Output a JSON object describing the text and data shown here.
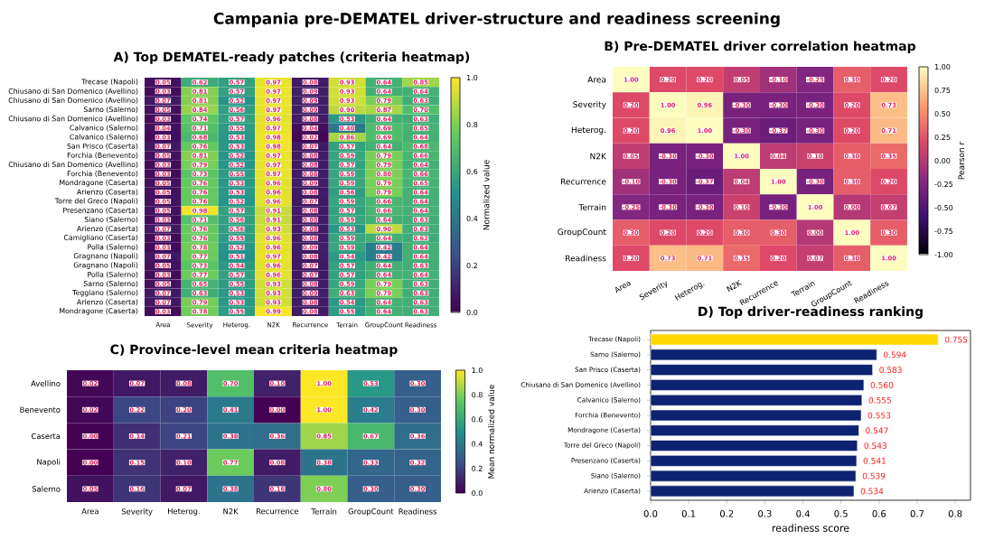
{
  "chart_data": [
    {
      "type": "heatmap",
      "title": "A) Top DEMATEL-ready patches (criteria heatmap)",
      "annotations": [
        "Campania pre-DEMATEL driver-structure and readiness screening"
      ],
      "categories": [
        "Area",
        "Severity",
        "Heterog.",
        "N2K",
        "Recurrence",
        "Terrain",
        "GroupCount",
        "Readiness"
      ],
      "y_categories": [
        "Trecase (Napoli)",
        "Chiusano di San Domenico (Avellino)",
        "Chiusano di San Domenico (Avellino)",
        "Sarno (Salerno)",
        "Chiusano di San Domenico (Avellino)",
        "Calvanico (Salerno)",
        "Calvanico (Salerno)",
        "San Prisco (Caserta)",
        "Forchia (Benevento)",
        "Chiusano di San Domenico (Avellino)",
        "Forchia (Benevento)",
        "Mondragone (Caserta)",
        "Arienzo (Caserta)",
        "Torre del Greco (Napoli)",
        "Presenzano (Caserta)",
        "Siano (Salerno)",
        "Arienzo (Caserta)",
        "Camigliano (Caserta)",
        "Polla (Salerno)",
        "Gragnano (Napoli)",
        "Gragnano (Napoli)",
        "Polla (Salerno)",
        "Sarno (Salerno)",
        "Teggiano (Salerno)",
        "Arienzo (Caserta)",
        "Mondragone (Caserta)"
      ],
      "cells": [
        [
          0.05,
          0.62,
          0.57,
          0.97,
          0.08,
          0.93,
          0.64,
          0.85
        ],
        [
          0.03,
          0.81,
          0.57,
          0.97,
          0.09,
          0.93,
          0.64,
          0.64
        ],
        [
          0.07,
          0.81,
          0.52,
          0.97,
          0.09,
          0.93,
          0.79,
          0.63
        ],
        [
          0.05,
          0.84,
          0.56,
          0.97,
          0.09,
          0.9,
          0.87,
          0.7
        ],
        [
          0.03,
          0.74,
          0.57,
          0.96,
          0.08,
          0.53,
          0.64,
          0.63
        ],
        [
          0.04,
          0.71,
          0.55,
          0.97,
          0.04,
          0.4,
          0.69,
          0.65
        ],
        [
          0.03,
          0.68,
          0.53,
          0.98,
          0.02,
          0.86,
          0.69,
          0.64
        ],
        [
          0.07,
          0.76,
          0.53,
          0.98,
          0.07,
          0.57,
          0.64,
          0.68
        ],
        [
          0.05,
          0.81,
          0.52,
          0.97,
          0.08,
          0.59,
          0.79,
          0.66
        ],
        [
          0.03,
          0.79,
          0.52,
          0.97,
          0.08,
          0.57,
          0.79,
          0.64
        ],
        [
          0.03,
          0.73,
          0.55,
          0.97,
          0.08,
          0.59,
          0.8,
          0.66
        ],
        [
          0.05,
          0.76,
          0.53,
          0.96,
          0.09,
          0.59,
          0.79,
          0.65
        ],
        [
          0.05,
          0.76,
          0.53,
          0.96,
          0.08,
          0.56,
          0.79,
          0.64
        ],
        [
          0.05,
          0.76,
          0.52,
          0.96,
          0.07,
          0.59,
          0.66,
          0.64
        ],
        [
          0.05,
          0.98,
          0.57,
          0.91,
          0.08,
          0.57,
          0.66,
          0.64
        ],
        [
          0.03,
          0.71,
          0.56,
          0.91,
          0.08,
          0.59,
          0.64,
          0.63
        ],
        [
          0.07,
          0.76,
          0.56,
          0.93,
          0.08,
          0.53,
          0.9,
          0.63
        ],
        [
          0.03,
          0.76,
          0.55,
          0.96,
          0.08,
          0.59,
          0.64,
          0.62
        ],
        [
          0.03,
          0.78,
          0.52,
          0.96,
          0.09,
          0.59,
          0.42,
          0.64
        ],
        [
          0.07,
          0.77,
          0.51,
          0.97,
          0.08,
          0.54,
          0.42,
          0.64
        ],
        [
          0.05,
          0.73,
          0.54,
          0.96,
          0.07,
          0.57,
          0.64,
          0.63
        ],
        [
          0.03,
          0.77,
          0.57,
          0.96,
          0.07,
          0.57,
          0.64,
          0.64
        ],
        [
          0.05,
          0.65,
          0.55,
          0.93,
          0.08,
          0.59,
          0.79,
          0.63
        ],
        [
          0.07,
          0.63,
          0.53,
          0.93,
          0.09,
          0.63,
          0.79,
          0.63
        ],
        [
          0.07,
          0.79,
          0.53,
          0.93,
          0.08,
          0.54,
          0.64,
          0.63
        ],
        [
          0.03,
          0.78,
          0.55,
          0.99,
          0.08,
          0.55,
          0.64,
          0.63
        ]
      ],
      "clim": [
        0,
        1
      ],
      "cticks": [
        {
          "value": 0,
          "label": "0.0"
        },
        {
          "value": 0.2,
          "label": "0.2"
        },
        {
          "value": 0.4,
          "label": "0.4"
        },
        {
          "value": 0.6,
          "label": "0.6"
        },
        {
          "value": 0.8,
          "label": "0.8"
        },
        {
          "value": 1,
          "label": "1.0"
        }
      ],
      "cell_labels": [
        [
          "0.05",
          "0.62",
          "0.57",
          "0.97",
          "0.08",
          "0.93",
          "0.64",
          "0.85"
        ],
        [
          "0.03",
          "0.81",
          "0.57",
          "0.97",
          "0.09",
          "0.93",
          "0.64",
          "0.64"
        ],
        [
          "0.07",
          "0.81",
          "0.52",
          "0.97",
          "0.09",
          "0.93",
          "0.79",
          "0.63"
        ],
        [
          "0.05",
          "0.84",
          "0.56",
          "0.97",
          "0.09",
          "0.90",
          "0.87",
          "0.70"
        ],
        [
          "0.03",
          "0.74",
          "0.57",
          "0.96",
          "0.08",
          "0.53",
          "0.64",
          "0.63"
        ],
        [
          "0.04",
          "0.71",
          "0.55",
          "0.97",
          "0.04",
          "0.40",
          "0.69",
          "0.65"
        ],
        [
          "0.03",
          "0.68",
          "0.53",
          "0.98",
          "0.02",
          "0.86",
          "0.69",
          "0.64"
        ],
        [
          "0.07",
          "0.76",
          "0.53",
          "0.98",
          "0.07",
          "0.57",
          "0.64",
          "0.68"
        ],
        [
          "0.05",
          "0.81",
          "0.52",
          "0.97",
          "0.08",
          "0.59",
          "0.79",
          "0.66"
        ],
        [
          "0.03",
          "0.79",
          "0.52",
          "0.97",
          "0.08",
          "0.57",
          "0.79",
          "0.64"
        ],
        [
          "0.03",
          "0.73",
          "0.55",
          "0.97",
          "0.08",
          "0.59",
          "0.80",
          "0.66"
        ],
        [
          "0.05",
          "0.76",
          "0.53",
          "0.96",
          "0.09",
          "0.59",
          "0.79",
          "0.65"
        ],
        [
          "0.05",
          "0.76",
          "0.53",
          "0.96",
          "0.08",
          "0.56",
          "0.79",
          "0.64"
        ],
        [
          "0.05",
          "0.76",
          "0.52",
          "0.96",
          "0.07",
          "0.59",
          "0.66",
          "0.64"
        ],
        [
          "0.05",
          "0.98",
          "0.57",
          "0.91",
          "0.08",
          "0.57",
          "0.66",
          "0.64"
        ],
        [
          "0.03",
          "0.71",
          "0.56",
          "0.91",
          "0.08",
          "0.59",
          "0.64",
          "0.63"
        ],
        [
          "0.07",
          "0.76",
          "0.56",
          "0.93",
          "0.08",
          "0.53",
          "0.90",
          "0.63"
        ],
        [
          "0.03",
          "0.76",
          "0.55",
          "0.96",
          "0.08",
          "0.59",
          "0.64",
          "0.62"
        ],
        [
          "0.03",
          "0.78",
          "0.52",
          "0.96",
          "0.09",
          "0.59",
          "0.42",
          "0.64"
        ],
        [
          "0.07",
          "0.77",
          "0.51",
          "0.97",
          "0.08",
          "0.54",
          "0.42",
          "0.64"
        ],
        [
          "0.05",
          "0.73",
          "0.54",
          "0.96",
          "0.07",
          "0.57",
          "0.64",
          "0.63"
        ],
        [
          "0.03",
          "0.77",
          "0.57",
          "0.96",
          "0.07",
          "0.57",
          "0.64",
          "0.64"
        ],
        [
          "0.05",
          "0.65",
          "0.55",
          "0.93",
          "0.08",
          "0.59",
          "0.79",
          "0.63"
        ],
        [
          "0.07",
          "0.63",
          "0.53",
          "0.93",
          "0.09",
          "0.63",
          "0.79",
          "0.63"
        ],
        [
          "0.07",
          "0.79",
          "0.53",
          "0.93",
          "0.08",
          "0.54",
          "0.64",
          "0.63"
        ],
        [
          "0.03",
          "0.78",
          "0.55",
          "0.99",
          "0.08",
          "0.55",
          "0.64",
          "0.63"
        ]
      ],
      "clabel": "Normalized value",
      "data_labels": true
    },
    {
      "type": "heatmap",
      "title": "B) Pre-DEMATEL driver correlation heatmap",
      "categories": [
        "Area",
        "Severity",
        "Heterog.",
        "N2K",
        "Recurrence",
        "Terrain",
        "GroupCount",
        "Readiness"
      ],
      "y_categories": [
        "Area",
        "Severity",
        "Heterog.",
        "N2K",
        "Recurrence",
        "Terrain",
        "GroupCount",
        "Readiness"
      ],
      "cells": [
        [
          1.0,
          0.2,
          0.2,
          0.05,
          -0.1,
          -0.25,
          0.3,
          0.2
        ],
        [
          0.2,
          1.0,
          0.96,
          -0.3,
          -0.3,
          -0.3,
          0.2,
          0.73
        ],
        [
          0.2,
          0.96,
          1.0,
          -0.3,
          -0.37,
          -0.3,
          0.2,
          0.71
        ],
        [
          0.05,
          -0.3,
          -0.3,
          1.0,
          0.04,
          0.1,
          0.3,
          0.35
        ],
        [
          -0.1,
          -0.3,
          -0.37,
          0.04,
          1.0,
          -0.3,
          0.3,
          0.2
        ],
        [
          -0.25,
          -0.3,
          -0.3,
          0.1,
          -0.3,
          1.0,
          0.0,
          0.07
        ],
        [
          0.3,
          0.2,
          0.2,
          0.3,
          0.3,
          0.0,
          1.0,
          0.3
        ],
        [
          0.2,
          0.73,
          0.71,
          0.35,
          0.2,
          0.07,
          0.3,
          1.0
        ]
      ],
      "clim": [
        -1,
        1
      ],
      "cticks": [
        {
          "value": -1,
          "label": "-1.00"
        },
        {
          "value": -0.75,
          "label": "-0.75"
        },
        {
          "value": -0.5,
          "label": "-0.50"
        },
        {
          "value": -0.25,
          "label": "-0.25"
        },
        {
          "value": 0,
          "label": "0.00"
        },
        {
          "value": 0.25,
          "label": "0.25"
        },
        {
          "value": 0.5,
          "label": "0.50"
        },
        {
          "value": 0.75,
          "label": "0.75"
        },
        {
          "value": 1,
          "label": "1.00"
        }
      ],
      "cell_labels": [
        [
          "1.00",
          "0.20",
          "0.20",
          "0.05",
          "-0.10",
          "-0.25",
          "0.30",
          "0.20"
        ],
        [
          "0.20",
          "1.00",
          "0.96",
          "-0.30",
          "-0.30",
          "-0.30",
          "0.20",
          "0.73"
        ],
        [
          "0.20",
          "0.96",
          "1.00",
          "-0.30",
          "-0.37",
          "-0.30",
          "0.20",
          "0.71"
        ],
        [
          "0.05",
          "-0.30",
          "-0.30",
          "1.00",
          "0.04",
          "0.10",
          "0.30",
          "0.35"
        ],
        [
          "-0.10",
          "-0.30",
          "-0.37",
          "0.04",
          "1.00",
          "-0.30",
          "0.30",
          "0.20"
        ],
        [
          "-0.25",
          "-0.30",
          "-0.30",
          "0.10",
          "-0.30",
          "1.00",
          "0.00",
          "0.07"
        ],
        [
          "0.30",
          "0.20",
          "0.20",
          "0.30",
          "0.30",
          "0.00",
          "1.00",
          "0.30"
        ],
        [
          "0.20",
          "0.73",
          "0.71",
          "0.35",
          "0.20",
          "0.07",
          "0.30",
          "1.00"
        ]
      ],
      "clabel": "Pearson r",
      "data_labels": true
    },
    {
      "type": "heatmap",
      "title": "C) Province-level mean criteria heatmap",
      "categories": [
        "Area",
        "Severity",
        "Heterog.",
        "N2K",
        "Recurrence",
        "Terrain",
        "GroupCount",
        "Readiness"
      ],
      "y_categories": [
        "Avellino",
        "Benevento",
        "Caserta",
        "Napoli",
        "Salerno"
      ],
      "cells": [
        [
          0.02,
          0.07,
          0.08,
          0.7,
          0.1,
          1.0,
          0.53,
          0.3
        ],
        [
          0.02,
          0.22,
          0.2,
          0.41,
          0.0,
          1.0,
          0.42,
          0.3
        ],
        [
          0.0,
          0.14,
          0.21,
          0.38,
          0.36,
          0.85,
          0.67,
          0.36
        ],
        [
          0.0,
          0.15,
          0.1,
          0.77,
          0.08,
          0.38,
          0.33,
          0.32
        ],
        [
          0.05,
          0.16,
          0.07,
          0.38,
          0.16,
          0.8,
          0.3,
          0.3
        ]
      ],
      "clim": [
        0,
        1
      ],
      "cticks": [
        {
          "value": 0,
          "label": "0.0"
        },
        {
          "value": 0.2,
          "label": "0.2"
        },
        {
          "value": 0.4,
          "label": "0.4"
        },
        {
          "value": 0.6,
          "label": "0.6"
        },
        {
          "value": 0.8,
          "label": "0.8"
        },
        {
          "value": 1,
          "label": "1.0"
        }
      ],
      "cell_labels": [
        [
          "0.02",
          "0.07",
          "0.08",
          "0.70",
          "0.10",
          "1.00",
          "0.53",
          "0.30"
        ],
        [
          "0.02",
          "0.22",
          "0.20",
          "0.41",
          "0.00",
          "1.00",
          "0.42",
          "0.30"
        ],
        [
          "0.00",
          "0.14",
          "0.21",
          "0.38",
          "0.36",
          "0.85",
          "0.67",
          "0.36"
        ],
        [
          "0.00",
          "0.15",
          "0.10",
          "0.77",
          "0.08",
          "0.38",
          "0.33",
          "0.32"
        ],
        [
          "0.05",
          "0.16",
          "0.07",
          "0.38",
          "0.16",
          "0.80",
          "0.30",
          "0.30"
        ]
      ],
      "clabel": "Mean normalized value",
      "data_labels": true
    },
    {
      "type": "bar",
      "orientation": "horizontal",
      "title": "D) Top driver-readiness ranking",
      "xlabel": "readiness score",
      "categories": [
        "Trecase (Napoli)",
        "Sarno (Salerno)",
        "San Prisco (Caserta)",
        "Chiusano di San Domenico (Avellino)",
        "Calvanico (Salerno)",
        "Forchia (Benevento)",
        "Mondragone (Caserta)",
        "Torre del Greco (Napoli)",
        "Presenzano (Caserta)",
        "Siano (Salerno)",
        "Arienzo (Caserta)"
      ],
      "values": [
        0.755,
        0.594,
        0.583,
        0.56,
        0.555,
        0.553,
        0.547,
        0.543,
        0.541,
        0.539,
        0.534
      ],
      "value_labels": [
        "0.755",
        "0.594",
        "0.583",
        "0.560",
        "0.555",
        "0.553",
        "0.547",
        "0.543",
        "0.541",
        "0.539",
        "0.534"
      ],
      "colors": [
        "#ffd700",
        "#0d2270",
        "#0d2270",
        "#0d2270",
        "#0d2270",
        "#0d2270",
        "#0d2270",
        "#0d2270",
        "#0d2270",
        "#0d2270",
        "#0d2270"
      ],
      "xlim": [
        0,
        0.84
      ],
      "xticks": [
        {
          "value": 0,
          "label": "0.0"
        },
        {
          "value": 0.1,
          "label": "0.1"
        },
        {
          "value": 0.2,
          "label": "0.2"
        },
        {
          "value": 0.3,
          "label": "0.3"
        },
        {
          "value": 0.4,
          "label": "0.4"
        },
        {
          "value": 0.5,
          "label": "0.5"
        },
        {
          "value": 0.6,
          "label": "0.6"
        },
        {
          "value": 0.7,
          "label": "0.7"
        },
        {
          "value": 0.8,
          "label": "0.8"
        }
      ]
    }
  ]
}
